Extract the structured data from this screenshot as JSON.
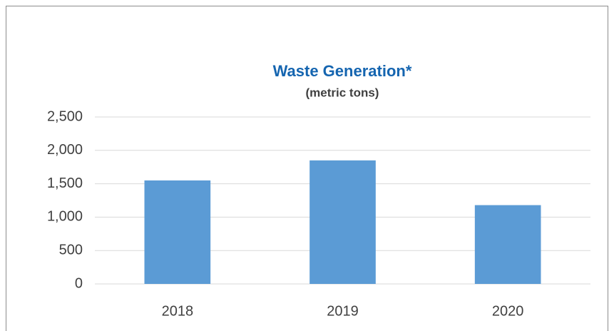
{
  "chart_data": {
    "type": "bar",
    "title": "Waste Generation*",
    "subtitle": "(metric tons)",
    "categories": [
      "2018",
      "2019",
      "2020"
    ],
    "values": [
      1550,
      1850,
      1180
    ],
    "color": "#5b9bd5",
    "ylim": [
      0,
      2500
    ],
    "yticks": [
      0,
      500,
      {
        "value": 1000,
        "label": "1,000"
      },
      {
        "value": 1500,
        "label": "1,500"
      },
      {
        "value": 2000,
        "label": "2,000"
      },
      {
        "value": 2500,
        "label": "2,500"
      }
    ],
    "grid": true
  }
}
